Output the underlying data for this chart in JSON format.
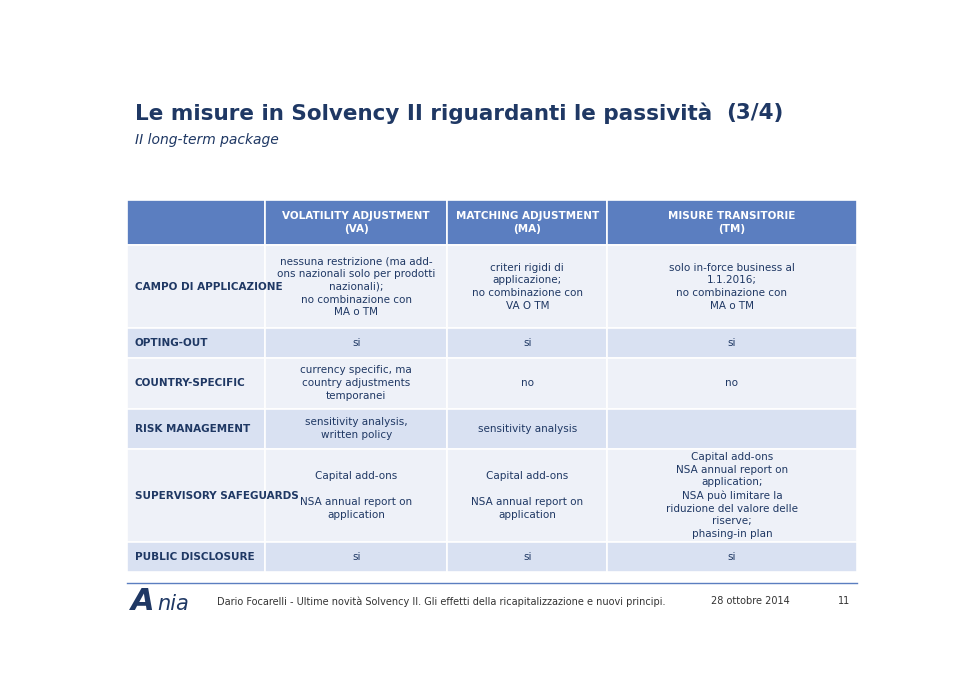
{
  "title": "Le misure in Solvency II riguardanti le passività",
  "title_suffix": "(3/4)",
  "subtitle": "II long-term package",
  "header_bg": "#5B7EC0",
  "header_text_color": "#FFFFFF",
  "row_bg_odd": "#EEF1F8",
  "row_bg_even": "#D9E1F2",
  "label_text_color": "#1F3864",
  "body_text_color": "#1F3864",
  "title_color": "#1F3864",
  "footer_line_color": "#5B7EC0",
  "footer_text_color": "#333333",
  "cols": [
    "",
    "VOLATILITY ADJUSTMENT\n(VA)",
    "MATCHING ADJUSTMENT\n(MA)",
    "MISURE TRANSITORIE\n(TM)"
  ],
  "rows": [
    {
      "label": "CAMPO DI APPLICAZIONE",
      "va": "nessuna restrizione (ma add-\nons nazionali solo per prodotti\nnazionali);\nno combinazione con\nMA o TM",
      "ma": "criteri rigidi di\napplicazione;\nno combinazione con\nVA O TM",
      "tm": "solo in-force business al\n1.1.2016;\nno combinazione con\nMA o TM"
    },
    {
      "label": "OPTING-OUT",
      "va": "si",
      "ma": "si",
      "tm": "si"
    },
    {
      "label": "COUNTRY-SPECIFIC",
      "va": "currency specific, ma\ncountry adjustments\ntemporanei",
      "ma": "no",
      "tm": "no"
    },
    {
      "label": "RISK MANAGEMENT",
      "va": "sensitivity analysis,\nwritten policy",
      "ma": "sensitivity analysis",
      "tm": ""
    },
    {
      "label": "SUPERVISORY SAFEGUARDS",
      "va": "Capital add-ons\n\nNSA annual report on\napplication",
      "ma": "Capital add-ons\n\nNSA annual report on\napplication",
      "tm": "Capital add-ons\nNSA annual report on\napplication;\nNSA può limitare la\nriduzione del valore delle\nriserve;\nphasing-in plan"
    },
    {
      "label": "PUBLIC DISCLOSURE",
      "va": "si",
      "ma": "si",
      "tm": "si"
    }
  ],
  "footer_text": "Dario Focarelli - Ultime novità Solvency II. Gli effetti della ricapitalizzazione e nuovi principi.",
  "footer_date": "28 ottobre 2014",
  "footer_page": "11"
}
